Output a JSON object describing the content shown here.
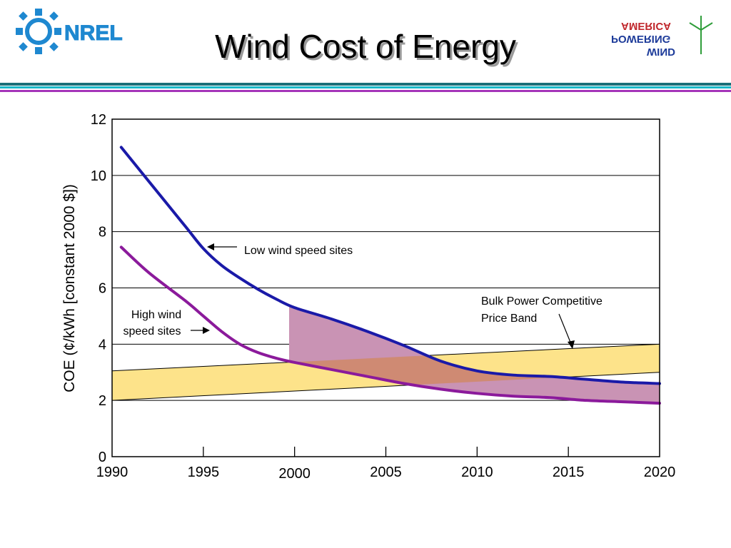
{
  "slide": {
    "title": "Wind Cost of Energy",
    "logo_left_text": "NREL",
    "logo_right_lines": [
      "AMERICA",
      "POWERING",
      "WIND"
    ]
  },
  "colors": {
    "low_wind_line": "#1a1aa8",
    "high_wind_line": "#8b1a9b",
    "band_fill": "#fde38a",
    "gap_fill": "#c993b4",
    "gap_overlap_fill": "#cf8a73",
    "logo_blue": "#1e88d0",
    "rule_teal": "#1a6f78",
    "rule_cyan": "#18b8c8",
    "rule_purple": "#a535b9"
  },
  "chart_data": {
    "type": "line",
    "title": "",
    "xlabel": "",
    "ylabel": "COE (¢/kWh [constant 2000 $])",
    "xlim": [
      1990,
      2020
    ],
    "ylim": [
      0,
      12
    ],
    "x_ticks": [
      1990,
      1995,
      2000,
      2005,
      2010,
      2015,
      2020
    ],
    "y_ticks": [
      0,
      2,
      4,
      6,
      8,
      10,
      12
    ],
    "grid": "horizontal",
    "series": [
      {
        "name": "Low wind speed sites",
        "x": [
          1990.5,
          1992,
          1994,
          1995,
          1996,
          1997,
          1998,
          1999,
          2000,
          2002,
          2004,
          2006,
          2008,
          2010,
          2012,
          2014,
          2016,
          2018,
          2020
        ],
        "y": [
          11.0,
          9.8,
          8.2,
          7.4,
          6.8,
          6.35,
          5.95,
          5.6,
          5.3,
          4.9,
          4.45,
          3.95,
          3.4,
          3.05,
          2.9,
          2.85,
          2.75,
          2.65,
          2.6
        ]
      },
      {
        "name": "High wind speed sites",
        "x": [
          1990.5,
          1992,
          1994,
          1995,
          1996,
          1997,
          1998,
          1999,
          2000,
          2002,
          2004,
          2006,
          2008,
          2010,
          2012,
          2014,
          2016,
          2018,
          2020
        ],
        "y": [
          7.45,
          6.55,
          5.55,
          5.0,
          4.45,
          4.0,
          3.7,
          3.5,
          3.35,
          3.1,
          2.85,
          2.6,
          2.4,
          2.25,
          2.15,
          2.1,
          2.0,
          1.95,
          1.9
        ]
      }
    ],
    "price_band": {
      "label": "Bulk Power Competitive Price Band",
      "lower": {
        "x": [
          1990,
          2020
        ],
        "y": [
          2.0,
          3.0
        ]
      },
      "upper": {
        "x": [
          1990,
          2020
        ],
        "y": [
          3.05,
          4.0
        ]
      }
    },
    "shaded_gap_from_x": 1999.7,
    "annotations": [
      {
        "lines": [
          "Low wind speed sites"
        ]
      },
      {
        "lines": [
          "High wind",
          "speed sites"
        ]
      },
      {
        "lines": [
          "Bulk Power Competitive",
          "Price Band"
        ]
      }
    ]
  }
}
